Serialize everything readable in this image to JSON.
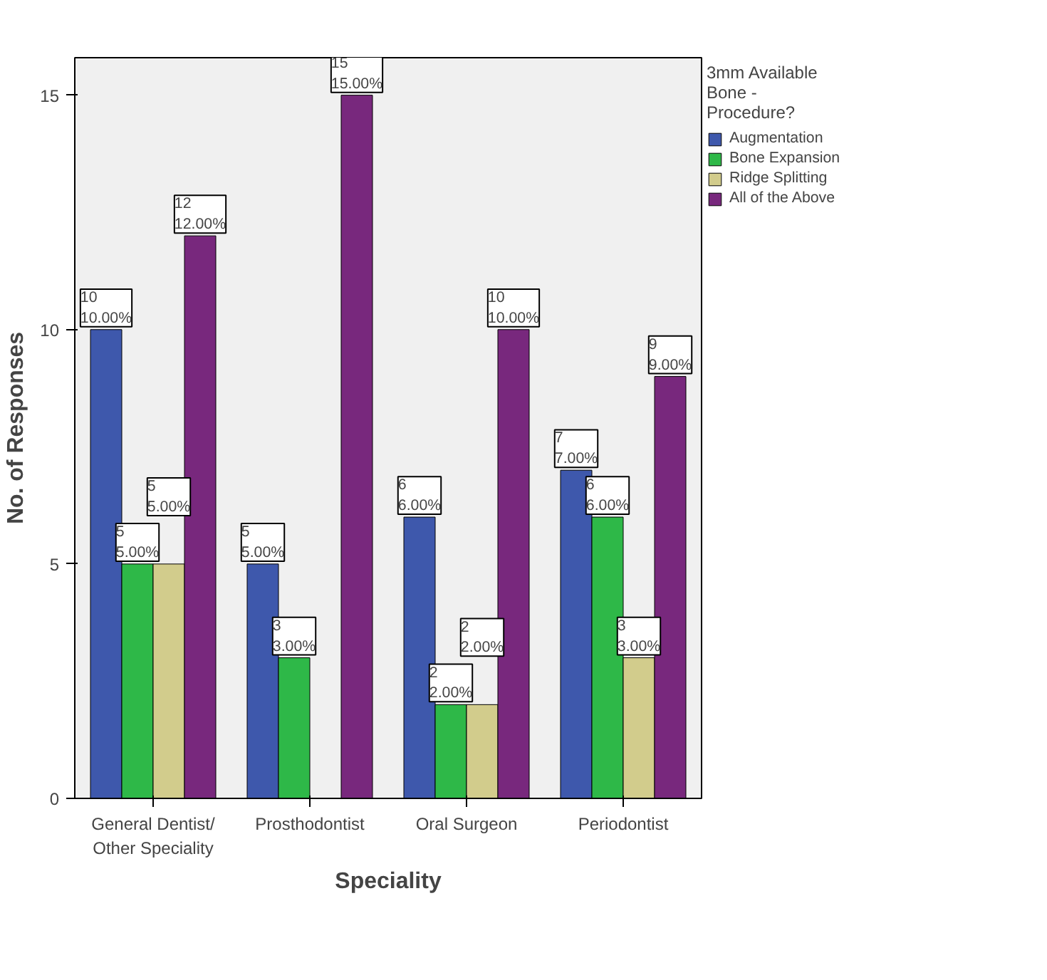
{
  "chart_data": {
    "type": "bar",
    "xlabel": "Speciality",
    "ylabel": "No. of Responses",
    "legend_title": "3mm Available Bone - Procedure?",
    "legend": "top right",
    "categories": [
      "General Dentist/\nOther Speciality",
      "Prosthodontist",
      "Oral Surgeon",
      "Periodontist"
    ],
    "ylim": [
      0,
      15.8
    ],
    "yticks": [
      0,
      5,
      10,
      15
    ],
    "grid": false,
    "series": [
      {
        "name": "Augmentation",
        "color": "#3e58ac",
        "values": [
          10,
          5,
          6,
          7
        ],
        "value_labels": [
          "10\n10.00%",
          "5\n5.00%",
          "6\n6.00%",
          "7\n7.00%"
        ]
      },
      {
        "name": "Bone Expansion",
        "color": "#2eb848",
        "values": [
          5,
          3,
          2,
          6
        ],
        "value_labels": [
          "5\n5.00%",
          "3\n3.00%",
          "2\n2.00%",
          "6\n6.00%"
        ]
      },
      {
        "name": "Ridge Splitting",
        "color": "#d2cc8c",
        "values": [
          5,
          null,
          2,
          3
        ],
        "value_labels": [
          "5\n5.00%",
          null,
          "2\n2.00%",
          "3\n3.00%"
        ]
      },
      {
        "name": "All of the Above",
        "color": "#78287d",
        "values": [
          12,
          15,
          10,
          9
        ],
        "value_labels": [
          "12\n12.00%",
          "15\n15.00%",
          "10\n10.00%",
          "9\n9.00%"
        ]
      }
    ]
  }
}
